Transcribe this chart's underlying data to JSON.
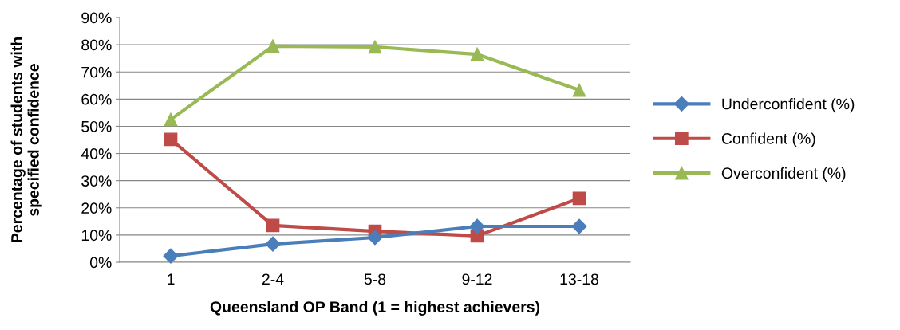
{
  "chart_data": {
    "type": "line",
    "xlabel": "Queensland OP Band (1 = highest achievers)",
    "ylabel": "Percentage of students with specified confidence",
    "categories": [
      "1",
      "2-4",
      "5-8",
      "9-12",
      "13-18"
    ],
    "series": [
      {
        "name": "Underconfident (%)",
        "color": "#4a7ebb",
        "marker": "diamond",
        "values": [
          2.3,
          6.7,
          9.1,
          13.2,
          13.2
        ]
      },
      {
        "name": "Confident (%)",
        "color": "#be4b48",
        "marker": "square",
        "values": [
          45.2,
          13.5,
          11.4,
          9.7,
          23.5
        ]
      },
      {
        "name": "Overconfident (%)",
        "color": "#98b954",
        "marker": "triangle",
        "values": [
          52.5,
          79.5,
          79.2,
          76.5,
          63.3
        ]
      }
    ],
    "ylim": [
      0,
      90
    ],
    "yticks": [
      {
        "value": 0,
        "label": "0%"
      },
      {
        "value": 10,
        "label": "10%"
      },
      {
        "value": 20,
        "label": "20%"
      },
      {
        "value": 30,
        "label": "30%"
      },
      {
        "value": 40,
        "label": "40%"
      },
      {
        "value": 50,
        "label": "50%"
      },
      {
        "value": 60,
        "label": "60%"
      },
      {
        "value": 70,
        "label": "70%"
      },
      {
        "value": 80,
        "label": "80%"
      },
      {
        "value": 90,
        "label": "90%"
      }
    ],
    "grid": "y",
    "legend": "right",
    "line_style": "solid"
  }
}
